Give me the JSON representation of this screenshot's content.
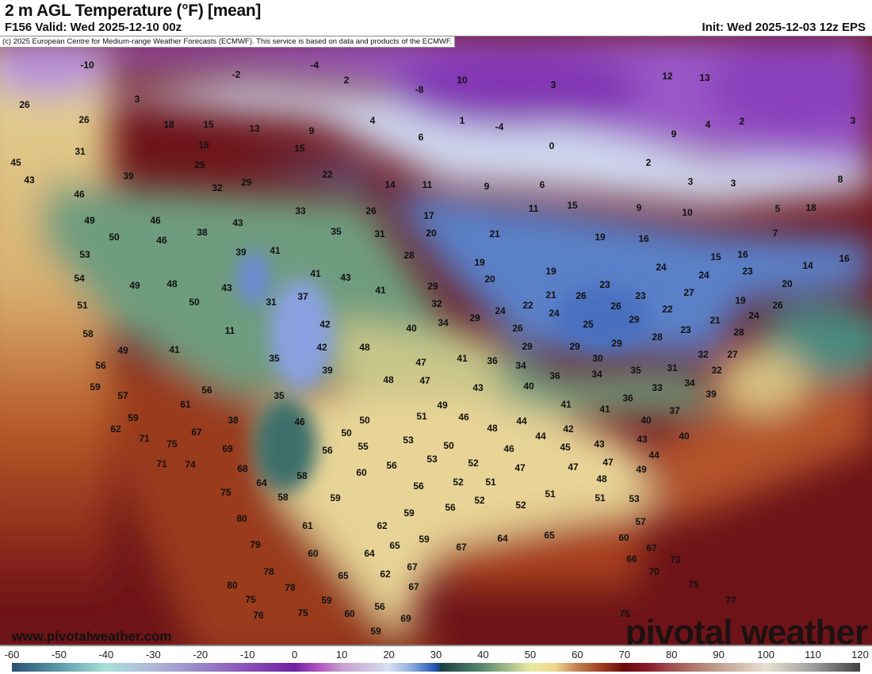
{
  "header": {
    "title": "2 m AGL Temperature (°F) [mean]",
    "valid": "F156 Valid: Wed 2025-12-10 00z",
    "init": "Init: Wed 2025-12-03 12z EPS",
    "copyright": "(c) 2025 European Centre for Medium-range Weather Forecasts (ECMWF). This service is based on data and products of the ECMWF."
  },
  "footer": {
    "website": "www.pivotalweather.com",
    "logo": "pivotal weather"
  },
  "colorbar": {
    "unit": "°F",
    "ticks": [
      "-60",
      "-50",
      "-40",
      "-30",
      "-20",
      "-10",
      "0",
      "10",
      "20",
      "30",
      "40",
      "50",
      "60",
      "70",
      "80",
      "90",
      "100",
      "110",
      "120"
    ],
    "range": [
      -60,
      120
    ]
  },
  "temperature_labels": [
    "-10",
    "-4",
    "-2",
    "10",
    "3",
    "-8",
    "3",
    "13",
    "12",
    "2",
    "26",
    "26",
    "18",
    "15",
    "13",
    "9",
    "4",
    "1",
    "-4",
    "6",
    "4",
    "2",
    "3",
    "15",
    "18",
    "0",
    "9",
    "31",
    "25",
    "2",
    "45",
    "39",
    "22",
    "3",
    "3",
    "8",
    "43",
    "32",
    "29",
    "14",
    "11",
    "9",
    "6",
    "46",
    "49",
    "46",
    "33",
    "26",
    "17",
    "11",
    "15",
    "9",
    "10",
    "5",
    "18",
    "43",
    "38",
    "35",
    "31",
    "20",
    "21",
    "19",
    "16",
    "7",
    "50",
    "46",
    "39",
    "41",
    "28",
    "15",
    "16",
    "16",
    "53",
    "54",
    "49",
    "48",
    "43",
    "41",
    "43",
    "19",
    "19",
    "24",
    "24",
    "23",
    "14",
    "41",
    "29",
    "20",
    "23",
    "26",
    "21",
    "26",
    "23",
    "27",
    "20",
    "51",
    "50",
    "31",
    "37",
    "32",
    "22",
    "24",
    "22",
    "19",
    "26",
    "58",
    "42",
    "34",
    "40",
    "29",
    "24",
    "26",
    "25",
    "29",
    "23",
    "21",
    "24",
    "41",
    "49",
    "11",
    "28",
    "28",
    "29",
    "29",
    "30",
    "29",
    "32",
    "27",
    "42",
    "48",
    "35",
    "39",
    "47",
    "41",
    "36",
    "34",
    "31",
    "32",
    "56",
    "59",
    "48",
    "47",
    "36",
    "34",
    "35",
    "43",
    "40",
    "57",
    "56",
    "35",
    "33",
    "34",
    "39",
    "36",
    "61",
    "51",
    "49",
    "46",
    "41",
    "41",
    "37",
    "59",
    "38",
    "46",
    "50",
    "48",
    "44",
    "40",
    "62",
    "67",
    "71",
    "75",
    "50",
    "44",
    "42",
    "43",
    "40",
    "53",
    "55",
    "56",
    "50",
    "45",
    "43",
    "46",
    "69",
    "44",
    "71",
    "74",
    "68",
    "56",
    "53",
    "52",
    "47",
    "47",
    "47",
    "60",
    "58",
    "64",
    "56",
    "52",
    "51",
    "48",
    "49",
    "75",
    "58",
    "59",
    "52",
    "51",
    "51",
    "53",
    "59",
    "56",
    "52",
    "80",
    "62",
    "57",
    "61",
    "67",
    "64",
    "65",
    "65",
    "59",
    "60",
    "67",
    "79",
    "60",
    "64",
    "66",
    "73",
    "78",
    "65",
    "62",
    "67",
    "70",
    "80",
    "78",
    "67",
    "75",
    "75",
    "59",
    "56",
    "77",
    "76",
    "75",
    "60",
    "69",
    "75",
    "59"
  ]
}
